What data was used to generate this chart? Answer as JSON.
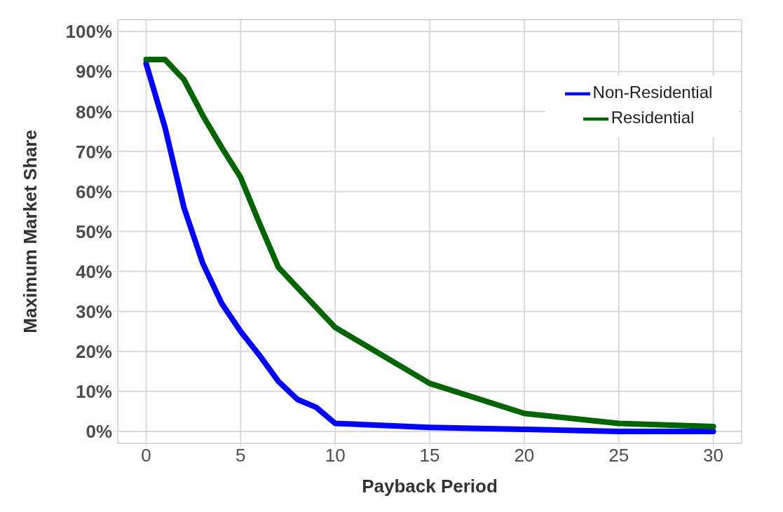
{
  "chart_data": {
    "type": "line",
    "xlabel": "Payback Period",
    "ylabel": "Maximum Market Share",
    "x": [
      0,
      1,
      2,
      3,
      4,
      5,
      6,
      7,
      8,
      9,
      10,
      15,
      20,
      25,
      30
    ],
    "series": [
      {
        "name": "Non-Residential",
        "color": "#0000ff",
        "values": [
          92,
          76,
          56,
          42,
          32,
          25,
          19,
          12.5,
          8,
          6,
          2,
          1,
          0.5,
          0,
          0
        ]
      },
      {
        "name": "Residential",
        "color": "#006400",
        "values": [
          93,
          93,
          88,
          79,
          71,
          63.5,
          52,
          41,
          36,
          31,
          26,
          12,
          4.5,
          2,
          1.2
        ]
      }
    ],
    "xlim": [
      -1.5,
      31.5
    ],
    "xticks": [
      0,
      5,
      10,
      15,
      20,
      25,
      30
    ],
    "ylim": [
      -3,
      103
    ],
    "yticks": [
      {
        "value": 0,
        "label": "0%"
      },
      {
        "value": 10,
        "label": "10%"
      },
      {
        "value": 20,
        "label": "20%"
      },
      {
        "value": 30,
        "label": "30%"
      },
      {
        "value": 40,
        "label": "40%"
      },
      {
        "value": 50,
        "label": "50%"
      },
      {
        "value": 60,
        "label": "60%"
      },
      {
        "value": 70,
        "label": "70%"
      },
      {
        "value": 80,
        "label": "80%"
      },
      {
        "value": 90,
        "label": "90%"
      },
      {
        "value": 100,
        "label": "100%"
      }
    ],
    "grid": true,
    "legend": "top right",
    "marker": "none",
    "line_style": "solid"
  }
}
